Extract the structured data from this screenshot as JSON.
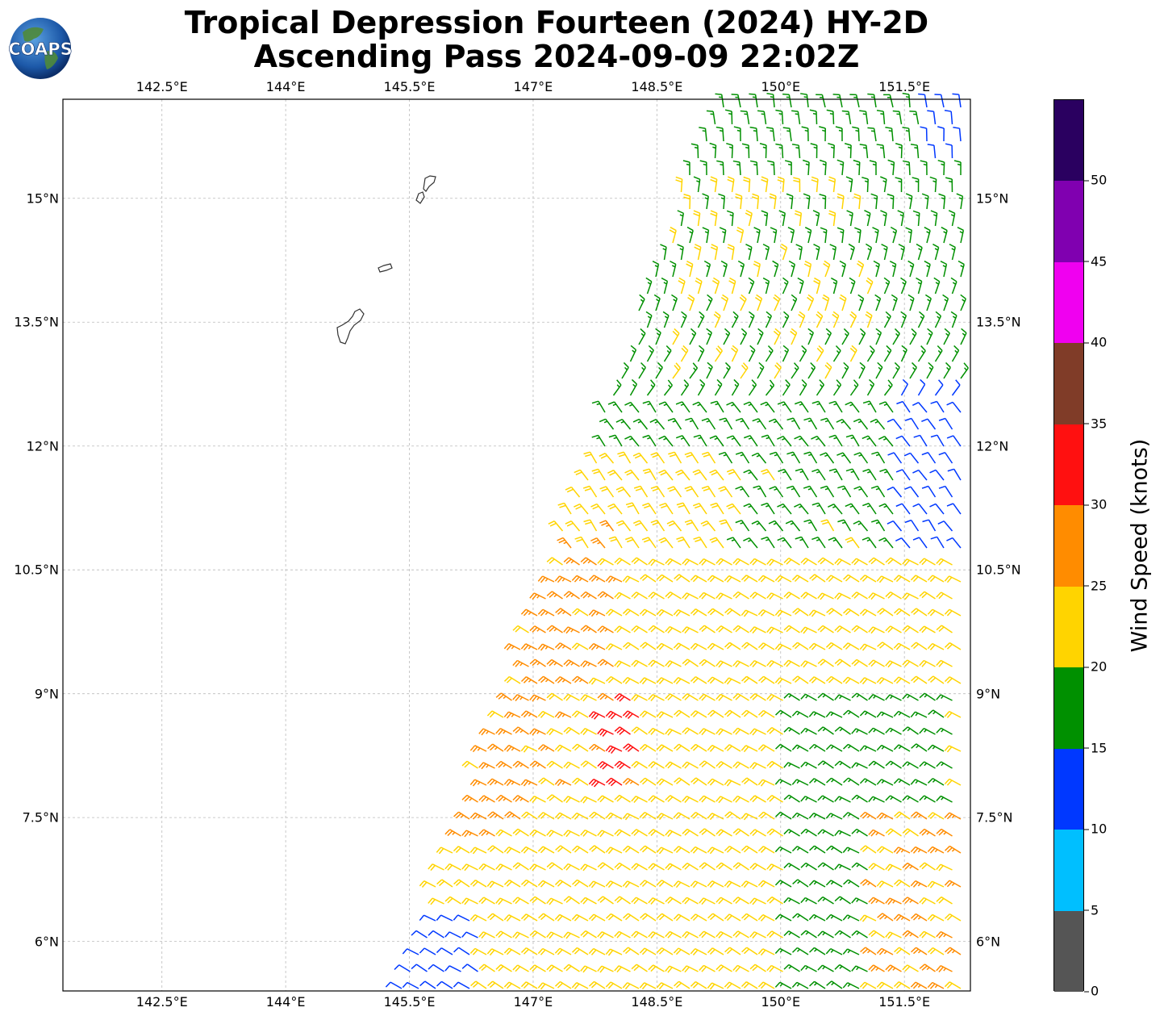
{
  "title": {
    "line1": "Tropical Depression Fourteen (2024) HY-2D",
    "line2": "Ascending Pass 2024-09-09 22:02Z"
  },
  "logo": {
    "text": "COAPS",
    "icon": "globe-icon"
  },
  "map": {
    "lon_range": [
      141.3,
      152.3
    ],
    "lat_range": [
      5.4,
      16.2
    ],
    "lon_ticks": [
      "142.5°E",
      "144°E",
      "145.5°E",
      "147°E",
      "148.5°E",
      "150°E",
      "151.5°E"
    ],
    "lat_ticks": [
      "15°N",
      "13.5°N",
      "12°N",
      "10.5°N",
      "9°N",
      "7.5°N",
      "6°N"
    ],
    "gridlines": true,
    "islands": [
      "Saipan/Tinian",
      "Rota",
      "Guam"
    ]
  },
  "colorbar": {
    "label": "Wind Speed (knots)",
    "ticks": [
      "0",
      "5",
      "10",
      "15",
      "20",
      "25",
      "30",
      "35",
      "40",
      "45",
      "50"
    ],
    "bins": [
      {
        "min": 0,
        "max": 5,
        "color": "#555555"
      },
      {
        "min": 5,
        "max": 10,
        "color": "#00bfff"
      },
      {
        "min": 10,
        "max": 15,
        "color": "#0038ff"
      },
      {
        "min": 15,
        "max": 20,
        "color": "#009000"
      },
      {
        "min": 20,
        "max": 25,
        "color": "#ffd400"
      },
      {
        "min": 25,
        "max": 30,
        "color": "#ff8c00"
      },
      {
        "min": 30,
        "max": 35,
        "color": "#ff1010"
      },
      {
        "min": 35,
        "max": 40,
        "color": "#803c28"
      },
      {
        "min": 40,
        "max": 45,
        "color": "#f000f0"
      },
      {
        "min": 45,
        "max": 50,
        "color": "#8000b0"
      },
      {
        "min": 50,
        "max": 55,
        "color": "#2a0060"
      }
    ]
  }
}
